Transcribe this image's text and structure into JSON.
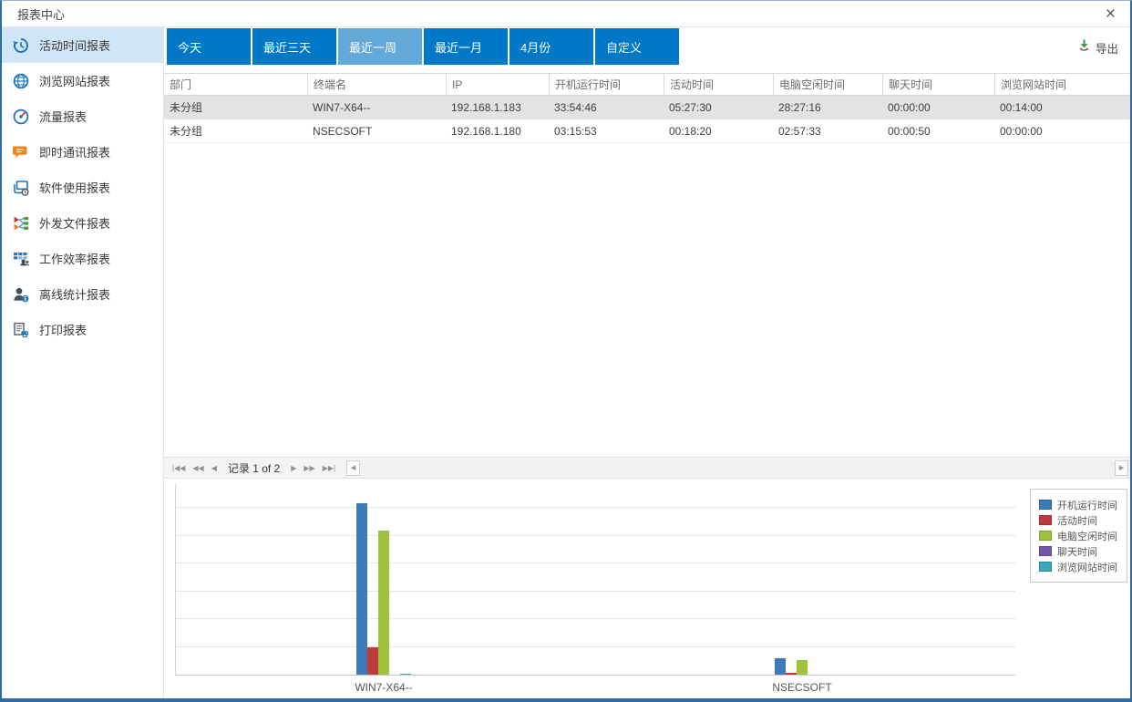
{
  "window": {
    "title": "报表中心",
    "close_glyph": "×"
  },
  "sidebar": {
    "items": [
      {
        "id": "activity-time",
        "label": "活动时间报表",
        "icon": "history-clock-icon",
        "selected": true
      },
      {
        "id": "web-browse",
        "label": "浏览网站报表",
        "icon": "globe-icon",
        "selected": false
      },
      {
        "id": "traffic",
        "label": "流量报表",
        "icon": "gauge-icon",
        "selected": false
      },
      {
        "id": "instant-message",
        "label": "即时通讯报表",
        "icon": "chat-bubble-icon",
        "selected": false
      },
      {
        "id": "software-usage",
        "label": "软件使用报表",
        "icon": "app-window-clock-icon",
        "selected": false
      },
      {
        "id": "outgoing-files",
        "label": "外发文件报表",
        "icon": "file-dispatch-icon",
        "selected": false
      },
      {
        "id": "work-efficiency",
        "label": "工作效率报表",
        "icon": "grid-people-icon",
        "selected": false
      },
      {
        "id": "offline-stats",
        "label": "离线统计报表",
        "icon": "person-info-icon",
        "selected": false
      },
      {
        "id": "print-report",
        "label": "打印报表",
        "icon": "printer-icon",
        "selected": false
      }
    ]
  },
  "toolbar": {
    "tabs": [
      {
        "id": "today",
        "label": "今天"
      },
      {
        "id": "last-3-days",
        "label": "最近三天"
      },
      {
        "id": "last-week",
        "label": "最近一周"
      },
      {
        "id": "last-month",
        "label": "最近一月"
      },
      {
        "id": "april",
        "label": "4月份"
      },
      {
        "id": "custom",
        "label": "自定义"
      }
    ],
    "selected_tab_id": "last-week",
    "export_label": "导出"
  },
  "table": {
    "columns": [
      "部门",
      "终端名",
      "IP",
      "开机运行时间",
      "活动时间",
      "电脑空闲时间",
      "聊天时间",
      "浏览网站时间"
    ],
    "rows": [
      [
        "未分组",
        "WIN7-X64--",
        "192.168.1.183",
        "33:54:46",
        "05:27:30",
        "28:27:16",
        "00:00:00",
        "00:14:00"
      ],
      [
        "未分组",
        "NSECSOFT",
        "192.168.1.180",
        "03:15:53",
        "00:18:20",
        "02:57:33",
        "00:00:50",
        "00:00:00"
      ]
    ],
    "selected_row_index": 0
  },
  "pagination": {
    "record_text": "记录 1 of 2",
    "nav": [
      {
        "name": "first-page-button",
        "glyph": "|◀◀"
      },
      {
        "name": "fast-back-button",
        "glyph": "◀◀"
      },
      {
        "name": "prev-page-button",
        "glyph": "◀"
      },
      {
        "name": "next-page-button",
        "glyph": "▶"
      },
      {
        "name": "fast-forward-button",
        "glyph": "▶▶"
      },
      {
        "name": "last-page-button",
        "glyph": "▶▶|"
      }
    ],
    "scroll_left_glyph": "◀",
    "scroll_right_glyph": "▶"
  },
  "chart_data": {
    "type": "bar",
    "categories": [
      "WIN7-X64--",
      "NSECSOFT"
    ],
    "series": [
      {
        "id": "boot-run-time",
        "name": "开机运行时间",
        "color": "#3e79b8",
        "values_hms": [
          "33:54:46",
          "03:15:53"
        ],
        "values_hours": [
          33.91,
          3.26
        ]
      },
      {
        "id": "active-time",
        "name": "活动时间",
        "color": "#c03a3c",
        "values_hms": [
          "05:27:30",
          "00:18:20"
        ],
        "values_hours": [
          5.46,
          0.31
        ]
      },
      {
        "id": "idle-time",
        "name": "电脑空闲时间",
        "color": "#9dc23c",
        "values_hms": [
          "28:27:16",
          "02:57:33"
        ],
        "values_hours": [
          28.45,
          2.96
        ]
      },
      {
        "id": "chat-time",
        "name": "聊天时间",
        "color": "#7356a8",
        "values_hms": [
          "00:00:00",
          "00:00:50"
        ],
        "values_hours": [
          0,
          0.01
        ]
      },
      {
        "id": "web-time",
        "name": "浏览网站时间",
        "color": "#3aa7ba",
        "values_hms": [
          "00:14:00",
          "00:00:00"
        ],
        "values_hours": [
          0.23,
          0
        ]
      }
    ],
    "title": "",
    "xlabel": "",
    "ylabel": "",
    "ylim": [
      0,
      37.7
    ],
    "y_gridlines": 6,
    "y_axis_labels_visible": false,
    "legend_position": "top-right"
  }
}
